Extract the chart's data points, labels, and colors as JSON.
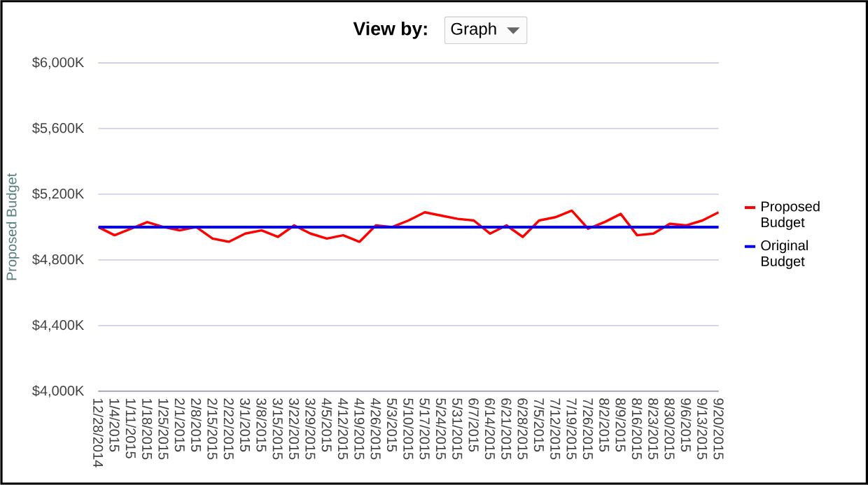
{
  "chart_data": {
    "type": "line",
    "title": "View by:",
    "annotations": [
      "Graph"
    ],
    "ylabel": "Proposed Budget",
    "categories": [
      "12/28/2014",
      "1/4/2015",
      "1/11/2015",
      "1/18/2015",
      "1/25/2015",
      "2/1/2015",
      "2/8/2015",
      "2/15/2015",
      "2/22/2015",
      "3/1/2015",
      "3/8/2015",
      "3/15/2015",
      "3/22/2015",
      "3/29/2015",
      "4/5/2015",
      "4/12/2015",
      "4/19/2015",
      "4/26/2015",
      "5/3/2015",
      "5/10/2015",
      "5/17/2015",
      "5/24/2015",
      "5/31/2015",
      "6/7/2015",
      "6/14/2015",
      "6/21/2015",
      "6/28/2015",
      "7/5/2015",
      "7/12/2015",
      "7/19/2015",
      "7/26/2015",
      "8/2/2015",
      "8/9/2015",
      "8/16/2015",
      "8/23/2015",
      "8/30/2015",
      "9/6/2015",
      "9/13/2015",
      "9/20/2015"
    ],
    "series": [
      {
        "name": "Proposed Budget",
        "color": "#ff0000",
        "values": [
          5000,
          4950,
          4990,
          5030,
          5000,
          4980,
          5000,
          4930,
          4910,
          4960,
          4980,
          4940,
          5010,
          4960,
          4930,
          4950,
          4910,
          5010,
          5000,
          5040,
          5090,
          5070,
          5050,
          5040,
          4960,
          5010,
          4940,
          5040,
          5060,
          5100,
          4990,
          5030,
          5080,
          4950,
          4960,
          5020,
          5010,
          5040,
          5090
        ]
      },
      {
        "name": "Original Budget",
        "color": "#0000ff",
        "values": [
          5000,
          5000,
          5000,
          5000,
          5000,
          5000,
          5000,
          5000,
          5000,
          5000,
          5000,
          5000,
          5000,
          5000,
          5000,
          5000,
          5000,
          5000,
          5000,
          5000,
          5000,
          5000,
          5000,
          5000,
          5000,
          5000,
          5000,
          5000,
          5000,
          5000,
          5000,
          5000,
          5000,
          5000,
          5000,
          5000,
          5000,
          5000,
          5000
        ]
      }
    ],
    "ylim": [
      4000,
      6000
    ],
    "yticks": [
      {
        "value": 4000,
        "label": "$4,000K"
      },
      {
        "value": 4400,
        "label": "$4,400K"
      },
      {
        "value": 4800,
        "label": "$4,800K"
      },
      {
        "value": 5200,
        "label": "$5,200K"
      },
      {
        "value": 5600,
        "label": "$5,600K"
      },
      {
        "value": 6000,
        "label": "$6,000K"
      }
    ],
    "grid": "y",
    "legend": "right",
    "line_style": "solid",
    "marker": "none"
  }
}
